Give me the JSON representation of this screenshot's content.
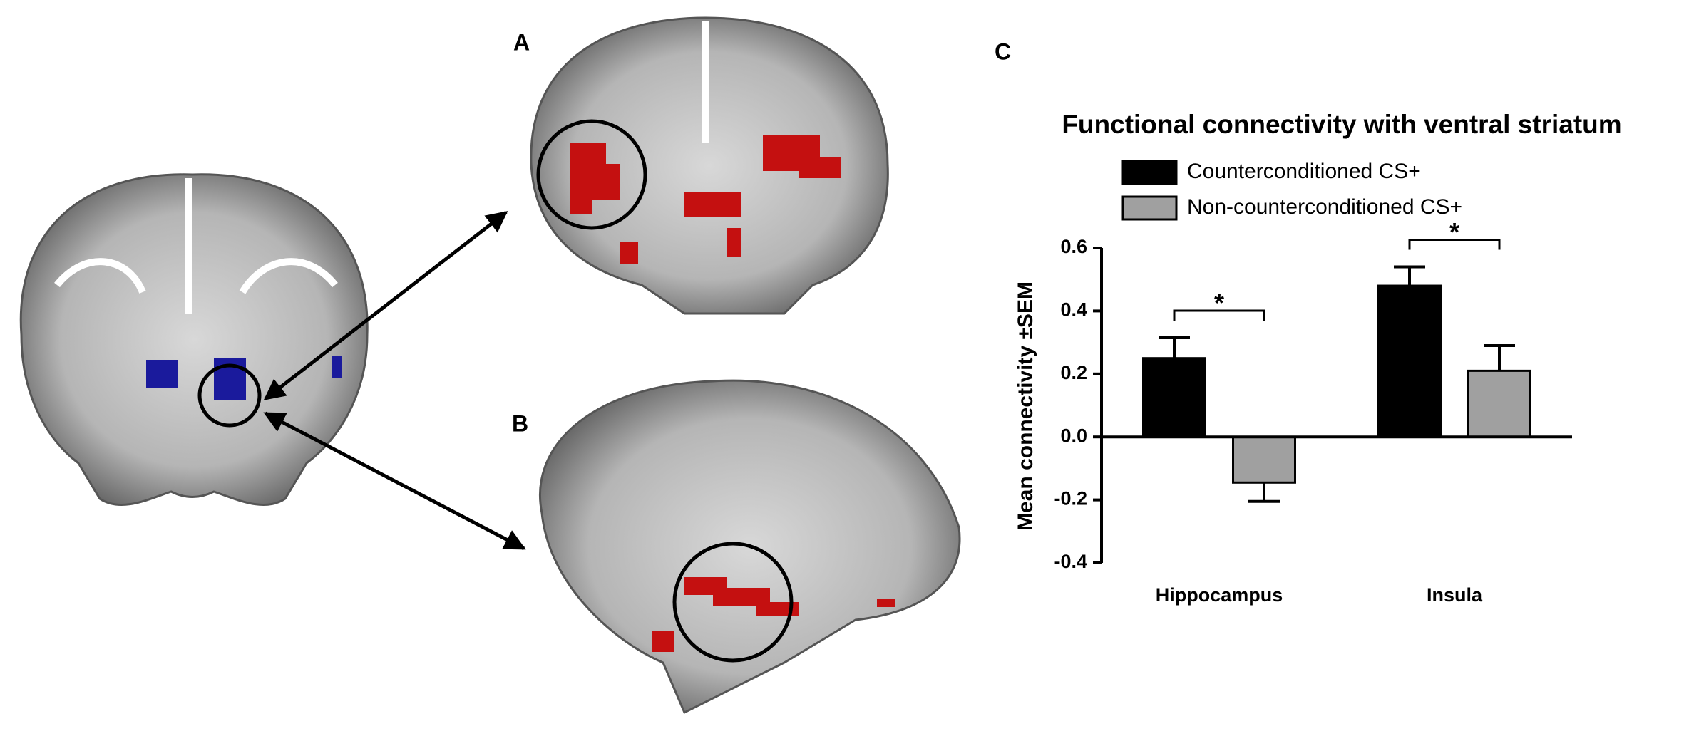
{
  "panels": [
    "A",
    "B",
    "C"
  ],
  "chart_data": {
    "type": "bar",
    "title": "Functional connectivity with ventral striatum",
    "y_label": "Mean connectivity ±SEM",
    "categories": [
      "Hippocampus",
      "Insula"
    ],
    "series": [
      {
        "name": "Counterconditioned CS+",
        "color": "#000000",
        "values": [
          0.25,
          0.48
        ],
        "errors": [
          0.065,
          0.06
        ]
      },
      {
        "name": "Non-counterconditioned CS+",
        "color": "#a0a0a0",
        "values": [
          -0.145,
          0.21
        ],
        "errors": [
          0.06,
          0.08
        ]
      }
    ],
    "annotations": [
      "*",
      "*"
    ],
    "ylim": [
      -0.4,
      0.6
    ],
    "yticks": [
      -0.4,
      -0.2,
      {
        "value": 0,
        "label": "0.0"
      },
      0.2,
      0.4,
      0.6
    ]
  }
}
